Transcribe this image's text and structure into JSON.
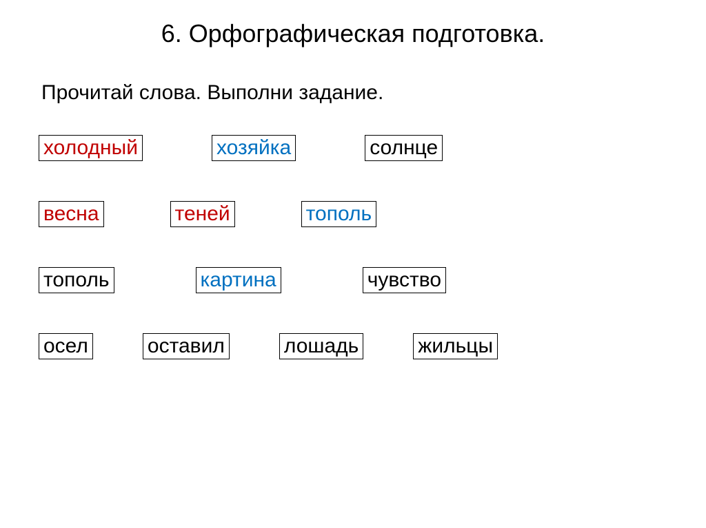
{
  "title": "6. Орфографическая подготовка.",
  "instruction": "Прочитай слова. Выполни задание.",
  "colors": {
    "red": "#c00000",
    "blue": "#0070c0",
    "black": "#000000",
    "background": "#ffffff",
    "border": "#000000"
  },
  "font": {
    "title_size": 36,
    "instruction_size": 30,
    "word_size": 30,
    "family": "Arial"
  },
  "rows": [
    {
      "gap": 100,
      "indent": 0,
      "words": [
        {
          "text": "холодный",
          "color": "red"
        },
        {
          "text": "хозяйка",
          "color": "blue"
        },
        {
          "text": "солнце",
          "color": "black"
        }
      ]
    },
    {
      "gap": 96,
      "indent": 0,
      "words": [
        {
          "text": "весна",
          "color": "red"
        },
        {
          "text": "теней",
          "color": "red"
        },
        {
          "text": "тополь",
          "color": "blue"
        }
      ]
    },
    {
      "gap": 118,
      "indent": 0,
      "words": [
        {
          "text": "тополь",
          "color": "black"
        },
        {
          "text": "картина",
          "color": "blue"
        },
        {
          "text": "чувство",
          "color": "black"
        }
      ]
    },
    {
      "gap": 72,
      "indent": 0,
      "words": [
        {
          "text": "осел",
          "color": "black"
        },
        {
          "text": "оставил",
          "color": "black"
        },
        {
          "text": "лошадь",
          "color": "black"
        },
        {
          "text": "жильцы",
          "color": "black"
        }
      ]
    }
  ]
}
